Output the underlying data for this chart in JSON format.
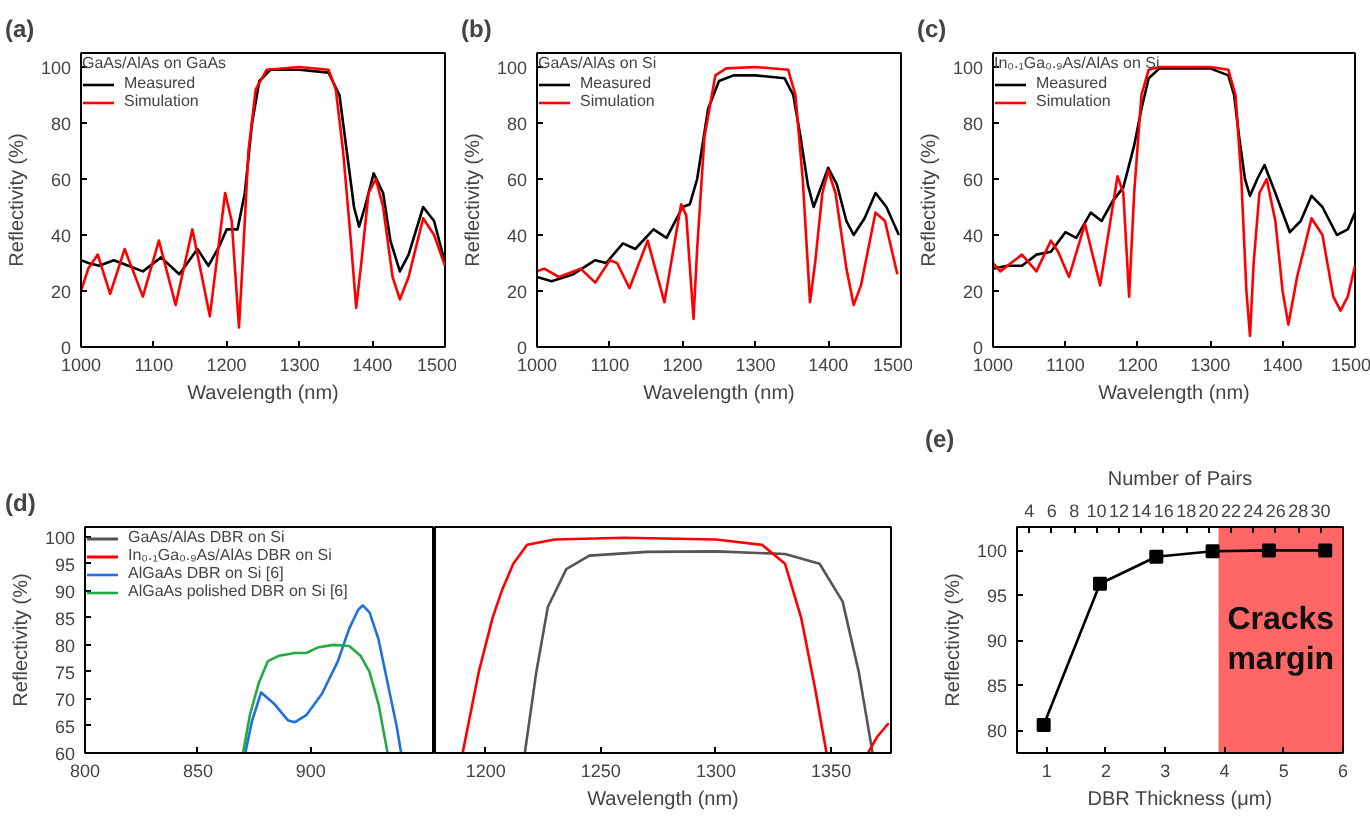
{
  "chart_data": [
    {
      "type": "line",
      "title": "(a)",
      "legend_title": "GaAs/AlAs on GaAs",
      "xlabel": "Wavelength (nm)",
      "ylabel": "Reflectivity (%)",
      "xlim": [
        1000,
        1500
      ],
      "ylim": [
        0,
        105
      ],
      "xticks": [
        1000,
        1100,
        1200,
        1300,
        1400,
        1500
      ],
      "yticks": [
        0,
        20,
        40,
        60,
        80,
        100
      ],
      "legend": "top left",
      "series": [
        {
          "name": "Measured",
          "color": "#000000",
          "x": [
            1000,
            1010,
            1025,
            1045,
            1065,
            1085,
            1110,
            1135,
            1160,
            1175,
            1190,
            1200,
            1215,
            1225,
            1235,
            1245,
            1260,
            1300,
            1340,
            1355,
            1365,
            1375,
            1382,
            1390,
            1402,
            1415,
            1425,
            1438,
            1450,
            1470,
            1485,
            1500
          ],
          "values": [
            31,
            30,
            29,
            31,
            29,
            27,
            32,
            26,
            35,
            29,
            36,
            42,
            42,
            55,
            80,
            95,
            99,
            99,
            98,
            90,
            70,
            50,
            43,
            50,
            62,
            55,
            38,
            27,
            33,
            50,
            45,
            30
          ]
        },
        {
          "name": "Simulation",
          "color": "#ff0000",
          "x": [
            1000,
            1010,
            1023,
            1040,
            1060,
            1085,
            1107,
            1130,
            1153,
            1177,
            1198,
            1207,
            1217,
            1222,
            1230,
            1240,
            1255,
            1300,
            1340,
            1350,
            1360,
            1370,
            1378,
            1385,
            1395,
            1405,
            1415,
            1428,
            1438,
            1450,
            1470,
            1485,
            1500
          ],
          "values": [
            20,
            28,
            33,
            19,
            35,
            18,
            38,
            15,
            42,
            11,
            55,
            45,
            7,
            30,
            70,
            92,
            99,
            100,
            99,
            92,
            70,
            40,
            14,
            30,
            55,
            60,
            50,
            25,
            17,
            25,
            46,
            40,
            29
          ]
        }
      ]
    },
    {
      "type": "line",
      "title": "(b)",
      "legend_title": "GaAs/AlAs on Si",
      "xlabel": "Wavelength (nm)",
      "ylabel": "Reflectivity (%)",
      "xlim": [
        1000,
        1500
      ],
      "ylim": [
        0,
        105
      ],
      "xticks": [
        1000,
        1100,
        1200,
        1300,
        1400,
        1500
      ],
      "yticks": [
        0,
        20,
        40,
        60,
        80,
        100
      ],
      "legend": "top left",
      "series": [
        {
          "name": "Measured",
          "color": "#000000",
          "x": [
            1000,
            1020,
            1050,
            1080,
            1095,
            1118,
            1135,
            1160,
            1178,
            1200,
            1210,
            1220,
            1235,
            1250,
            1270,
            1300,
            1340,
            1352,
            1362,
            1372,
            1380,
            1390,
            1400,
            1412,
            1425,
            1435,
            1450,
            1465,
            1480,
            1497
          ],
          "values": [
            25,
            23.5,
            26,
            31,
            30,
            37,
            35,
            42,
            39,
            50,
            51,
            60,
            85,
            95,
            97,
            97,
            96,
            90,
            75,
            58,
            50,
            57,
            64,
            58,
            45,
            40,
            46,
            55,
            50,
            40
          ]
        },
        {
          "name": "Simulation",
          "color": "#ff0000",
          "x": [
            1000,
            1010,
            1030,
            1060,
            1080,
            1100,
            1110,
            1127,
            1152,
            1175,
            1198,
            1205,
            1215,
            1220,
            1230,
            1245,
            1260,
            1300,
            1345,
            1355,
            1365,
            1375,
            1382,
            1392,
            1400,
            1410,
            1425,
            1435,
            1445,
            1465,
            1478,
            1495
          ],
          "values": [
            27,
            28,
            25,
            28,
            23,
            31,
            30,
            21,
            38,
            16,
            51,
            47,
            10,
            35,
            75,
            97,
            99.5,
            100,
            99,
            90,
            60,
            16,
            30,
            55,
            63,
            55,
            28,
            15,
            22,
            48,
            45,
            26
          ]
        }
      ]
    },
    {
      "type": "line",
      "title": "(c)",
      "legend_title": "In₀.₁Ga₀.₉As/AlAs on Si",
      "xlabel": "Wavelength (nm)",
      "ylabel": "Reflectivity (%)",
      "xlim": [
        1000,
        1500
      ],
      "ylim": [
        0,
        105
      ],
      "xticks": [
        1000,
        1100,
        1200,
        1300,
        1400,
        1500
      ],
      "yticks": [
        0,
        20,
        40,
        60,
        80,
        100
      ],
      "legend": "top left",
      "series": [
        {
          "name": "Measured",
          "color": "#000000",
          "x": [
            1000,
            1020,
            1040,
            1060,
            1080,
            1100,
            1115,
            1135,
            1150,
            1165,
            1180,
            1195,
            1205,
            1215,
            1230,
            1300,
            1325,
            1333,
            1340,
            1348,
            1355,
            1365,
            1375,
            1390,
            1410,
            1425,
            1440,
            1455,
            1475,
            1490,
            1500
          ],
          "values": [
            28,
            29,
            29,
            33,
            34,
            41,
            39,
            48,
            45,
            52,
            57,
            72,
            85,
            96,
            99.5,
            99.5,
            97,
            90,
            75,
            60,
            54,
            60,
            65,
            55,
            41,
            45,
            54,
            50,
            40,
            42,
            48
          ]
        },
        {
          "name": "Simulation",
          "color": "#ff0000",
          "x": [
            1000,
            1010,
            1025,
            1040,
            1060,
            1080,
            1090,
            1105,
            1127,
            1148,
            1172,
            1180,
            1188,
            1195,
            1205,
            1215,
            1230,
            1300,
            1325,
            1335,
            1343,
            1350,
            1355,
            1360,
            1368,
            1378,
            1390,
            1400,
            1408,
            1420,
            1440,
            1455,
            1470,
            1480,
            1490,
            1500
          ],
          "values": [
            30,
            27,
            30,
            33,
            27,
            38,
            34,
            25,
            44,
            22,
            61,
            55,
            18,
            55,
            90,
            99,
            100,
            100,
            99,
            90,
            60,
            20,
            4,
            30,
            55,
            60,
            45,
            20,
            8,
            25,
            46,
            40,
            18,
            13,
            18,
            29
          ]
        }
      ]
    },
    {
      "type": "line",
      "title": "(d)",
      "ylabel": "Reflectivity (%)",
      "xlim": [
        800,
        955
      ],
      "ylim": [
        60,
        101.8
      ],
      "xticks": [
        800,
        850,
        900
      ],
      "yticks": [
        60,
        65,
        70,
        75,
        80,
        85,
        90,
        95,
        100
      ],
      "legend": "top left",
      "series": [
        {
          "name": "AlGaAs DBR on Si [6]",
          "color": "#1f6fe0",
          "x": [
            871,
            874,
            878,
            884,
            890,
            893,
            898,
            905,
            912,
            917,
            921,
            923,
            926,
            930,
            934,
            938,
            940
          ],
          "values": [
            60,
            66,
            71.2,
            69,
            66,
            65.7,
            67,
            71,
            77,
            83,
            86.5,
            87.3,
            86,
            81,
            73,
            65,
            60
          ]
        },
        {
          "name": "AlGaAs polished DBR on Si [6]",
          "color": "#22aa44",
          "x": [
            870,
            873,
            877,
            881,
            886,
            893,
            898,
            903,
            910,
            917,
            922,
            926,
            930,
            934
          ],
          "values": [
            60,
            67,
            73,
            77,
            78,
            78.5,
            78.5,
            79.5,
            80,
            79.8,
            78,
            75,
            69,
            60
          ]
        }
      ]
    },
    {
      "type": "line",
      "xlabel": "Wavelength (nm)",
      "xlim": [
        1178,
        1376
      ],
      "ylim": [
        60,
        101.8
      ],
      "xticks": [
        1200,
        1250,
        1300,
        1350
      ],
      "yticks": [
        60,
        65,
        70,
        75,
        80,
        85,
        90,
        95,
        100
      ],
      "tick_labels": "x",
      "legend": "top left",
      "series": [
        {
          "name": "GaAs/AlAs DBR on Si",
          "color": "#555555",
          "x": [
            1217,
            1222,
            1227,
            1235,
            1245,
            1270,
            1300,
            1330,
            1345,
            1355,
            1362,
            1368
          ],
          "values": [
            60,
            75,
            87,
            94,
            96.5,
            97.2,
            97.3,
            96.8,
            95,
            88,
            75,
            60
          ]
        },
        {
          "name": "In₀.₁Ga₀.₉As/AlAs DBR on Si",
          "color": "#ff0000",
          "x": [
            1190,
            1197,
            1203,
            1207,
            1212,
            1218,
            1230,
            1260,
            1300,
            1320,
            1330,
            1337,
            1343,
            1348
          ],
          "values": [
            60,
            75,
            85,
            90,
            95,
            98.5,
            99.5,
            99.8,
            99.5,
            98.5,
            95,
            85,
            72,
            60
          ]
        },
        {
          "color": "#ff0000",
          "x": [
            1366,
            1370,
            1375
          ],
          "values": [
            60,
            63,
            65.5
          ]
        }
      ]
    },
    {
      "type": "line",
      "title": "(e)",
      "xlabel": "DBR Thickness (μm)",
      "ylabel": "Reflectivity (%)",
      "x2label": "Number of Pairs",
      "xlim": [
        0.5,
        6
      ],
      "ylim": [
        77.5,
        102.6
      ],
      "xticks": [
        1,
        2,
        3,
        4,
        5,
        6
      ],
      "yticks": [
        80,
        85,
        90,
        95,
        100
      ],
      "x2lim": [
        2.9,
        32
      ],
      "x2ticks": [
        4,
        6,
        8,
        10,
        12,
        14,
        16,
        18,
        20,
        22,
        24,
        26,
        28,
        30
      ],
      "marker": "square",
      "x": [
        0.95,
        1.9,
        2.85,
        3.8,
        4.75,
        5.7
      ],
      "series": [
        {
          "color": "#000000",
          "values": [
            80.6,
            96.3,
            99.3,
            99.9,
            100,
            100
          ]
        }
      ],
      "bands": [
        {
          "axis": "x",
          "from": 3.9,
          "to": 6,
          "label": "Cracks margin",
          "color": "#ff0000"
        }
      ]
    }
  ]
}
